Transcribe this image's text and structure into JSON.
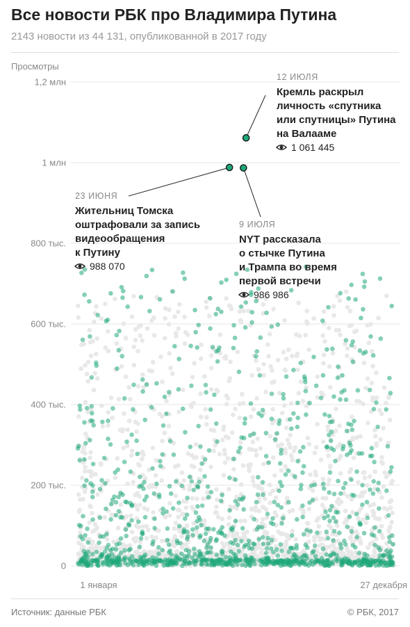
{
  "header": {
    "title": "Все новости РБК про Владимира Путина",
    "subtitle": "2143 новости из 44 131, опубликованной в 2017 году"
  },
  "footer": {
    "source": "Источник: данные РБК",
    "copyright": "© РБК, 2017"
  },
  "colors": {
    "putin_news": "#1fa77a",
    "other_news": "#e8e8e8",
    "highlight": "#1fa77a",
    "grid": "#e6e6e6",
    "text": "#222222",
    "muted": "#888888"
  },
  "chart_data": {
    "type": "scatter",
    "ylabel": "Просмотры",
    "ylim": [
      0,
      1200000
    ],
    "y_ticks": [
      {
        "value": 0,
        "label": "0"
      },
      {
        "value": 200000,
        "label": "200 тыс."
      },
      {
        "value": 400000,
        "label": "400 тыс."
      },
      {
        "value": 600000,
        "label": "600 тыс."
      },
      {
        "value": 800000,
        "label": "800 тыс."
      },
      {
        "value": 1000000,
        "label": "1 млн"
      },
      {
        "value": 1200000,
        "label": "1,2 млн"
      }
    ],
    "xlim": [
      "2017-01-01",
      "2017-12-27"
    ],
    "x_ticks": [
      {
        "value": "2017-01-01",
        "label": "1 января"
      },
      {
        "value": "2017-12-27",
        "label": "27 декабря"
      }
    ],
    "grid": true,
    "legend": "none",
    "series": [
      {
        "key": "highlighted",
        "points": [
          {
            "date": "2017-07-12",
            "views": 1061445
          },
          {
            "date": "2017-06-23",
            "views": 988070
          },
          {
            "date": "2017-07-09",
            "views": 986986
          }
        ]
      }
    ],
    "annotations": [
      {
        "id": "valaam",
        "date_label": "12 ИЮЛЯ",
        "lines": [
          "Кремль раскрыл",
          "личность «спутника",
          "или спутницы» Путина",
          "на Валааме"
        ],
        "views_label": "1 061 445"
      },
      {
        "id": "tomsk",
        "date_label": "23 ИЮНЯ",
        "lines": [
          "Жительниц Томска",
          "оштрафовали за запись",
          "видеообращения",
          "к Путину"
        ],
        "views_label": "988 070"
      },
      {
        "id": "nyt",
        "date_label": "9 ИЮЛЯ",
        "lines": [
          "NYT рассказала",
          "о стычке Путина",
          "и Трампа во время",
          "первой встречи"
        ],
        "views_label": "986 986"
      }
    ]
  }
}
